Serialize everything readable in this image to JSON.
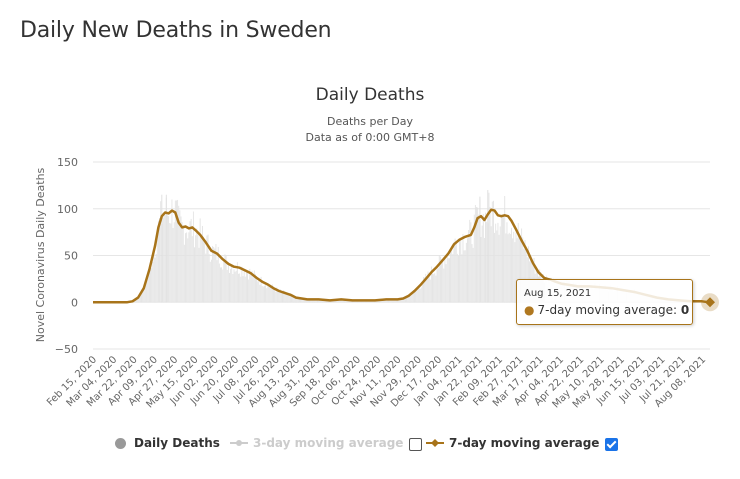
{
  "page": {
    "title": "Daily New Deaths in Sweden"
  },
  "chart_data": {
    "type": "bar",
    "title": "Daily Deaths",
    "subtitle_line1": "Deaths per Day",
    "subtitle_line2": "Data as of 0:00 GMT+8",
    "ylabel": "Novel Coronavirus Daily Deaths",
    "xlabel": "",
    "ylim": [
      -50,
      150
    ],
    "yticks": [
      150,
      100,
      50,
      0,
      -50
    ],
    "grid": true,
    "x_start": "2020-02-15",
    "x_end": "2021-08-15",
    "xtick_labels": [
      "Feb 15, 2020",
      "Mar 04, 2020",
      "Mar 22, 2020",
      "Apr 09, 2020",
      "Apr 27, 2020",
      "May 15, 2020",
      "Jun 02, 2020",
      "Jun 20, 2020",
      "Jul 08, 2020",
      "Jul 26, 2020",
      "Aug 13, 2020",
      "Aug 31, 2020",
      "Sep 18, 2020",
      "Oct 06, 2020",
      "Oct 24, 2020",
      "Nov 11, 2020",
      "Nov 29, 2020",
      "Dec 17, 2020",
      "Jan 04, 2021",
      "Jan 22, 2021",
      "Feb 09, 2021",
      "Feb 27, 2021",
      "Mar 17, 2021",
      "Apr 04, 2021",
      "Apr 22, 2021",
      "May 10, 2021",
      "May 28, 2021",
      "Jun 15, 2021",
      "Jul 03, 2021",
      "Jul 21, 2021",
      "Aug 08, 2021"
    ],
    "series": [
      {
        "name": "7-day moving average",
        "color": "#a8741a",
        "visible": true,
        "points_day_value": [
          [
            0,
            0
          ],
          [
            30,
            0
          ],
          [
            35,
            1
          ],
          [
            40,
            5
          ],
          [
            45,
            15
          ],
          [
            50,
            35
          ],
          [
            55,
            60
          ],
          [
            58,
            80
          ],
          [
            61,
            92
          ],
          [
            64,
            96
          ],
          [
            67,
            95
          ],
          [
            70,
            98
          ],
          [
            73,
            96
          ],
          [
            76,
            85
          ],
          [
            79,
            80
          ],
          [
            82,
            81
          ],
          [
            85,
            79
          ],
          [
            88,
            80
          ],
          [
            91,
            77
          ],
          [
            95,
            72
          ],
          [
            100,
            64
          ],
          [
            105,
            55
          ],
          [
            110,
            52
          ],
          [
            115,
            46
          ],
          [
            120,
            41
          ],
          [
            125,
            38
          ],
          [
            130,
            37
          ],
          [
            135,
            34
          ],
          [
            140,
            31
          ],
          [
            145,
            26
          ],
          [
            150,
            22
          ],
          [
            155,
            19
          ],
          [
            160,
            15
          ],
          [
            165,
            12
          ],
          [
            170,
            10
          ],
          [
            175,
            8
          ],
          [
            180,
            5
          ],
          [
            185,
            4
          ],
          [
            190,
            3
          ],
          [
            200,
            3
          ],
          [
            210,
            2
          ],
          [
            220,
            3
          ],
          [
            230,
            2
          ],
          [
            240,
            2
          ],
          [
            250,
            2
          ],
          [
            260,
            3
          ],
          [
            270,
            3
          ],
          [
            275,
            4
          ],
          [
            280,
            7
          ],
          [
            285,
            12
          ],
          [
            290,
            18
          ],
          [
            295,
            25
          ],
          [
            300,
            32
          ],
          [
            305,
            38
          ],
          [
            310,
            45
          ],
          [
            315,
            52
          ],
          [
            320,
            62
          ],
          [
            325,
            67
          ],
          [
            330,
            70
          ],
          [
            335,
            72
          ],
          [
            338,
            80
          ],
          [
            341,
            90
          ],
          [
            344,
            92
          ],
          [
            347,
            88
          ],
          [
            350,
            94
          ],
          [
            353,
            99
          ],
          [
            356,
            98
          ],
          [
            359,
            93
          ],
          [
            362,
            92
          ],
          [
            365,
            93
          ],
          [
            368,
            92
          ],
          [
            371,
            87
          ],
          [
            375,
            78
          ],
          [
            380,
            66
          ],
          [
            385,
            55
          ],
          [
            390,
            42
          ],
          [
            395,
            32
          ],
          [
            400,
            26
          ],
          [
            403,
            25
          ],
          [
            406,
            24
          ],
          [
            410,
            22
          ],
          [
            415,
            20
          ],
          [
            420,
            19
          ],
          [
            430,
            17
          ],
          [
            440,
            17
          ],
          [
            450,
            16
          ],
          [
            460,
            15
          ],
          [
            470,
            13
          ],
          [
            480,
            11
          ],
          [
            490,
            8
          ],
          [
            500,
            5
          ],
          [
            510,
            3
          ],
          [
            520,
            2
          ],
          [
            530,
            1
          ],
          [
            540,
            1
          ],
          [
            546,
            0
          ]
        ]
      },
      {
        "name": "3-day moving average",
        "color": "#cccccc",
        "visible": false
      },
      {
        "name": "Daily Deaths",
        "color": "#999999",
        "visible": true
      }
    ],
    "tooltip": {
      "date": "Aug 15, 2021",
      "series_label": "7-day moving average:",
      "value": "0"
    }
  },
  "legend": {
    "items": [
      {
        "label": "Daily Deaths",
        "checked": null
      },
      {
        "label": "3-day moving average",
        "checked": false
      },
      {
        "label": "7-day moving average",
        "checked": true
      }
    ]
  }
}
